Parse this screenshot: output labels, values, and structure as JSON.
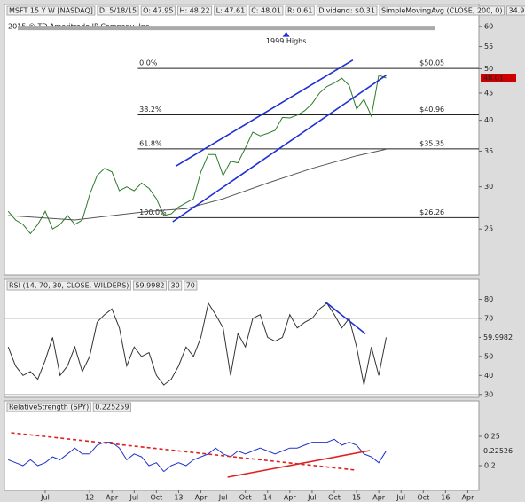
{
  "chart_data": [
    {
      "type": "line",
      "log_scale": true,
      "header": [
        "MSFT 15 Y W [NASDAQ]",
        "D: 5/18/15",
        "O: 47.95",
        "H: 48.22",
        "L: 47.61",
        "C: 48.01",
        "R: 0.61",
        "Dividend: $0.31",
        "SimpleMovingAvg (CLOSE, 200, 0)",
        "34.91"
      ],
      "watermark": "2015 © TD Ameritrade IP Company, Inc.",
      "annotation": {
        "text": "1999 Highs",
        "value": 59.6
      },
      "last_label": "48.01",
      "xlim": [
        0.5,
        64.5
      ],
      "ylim": [
        20.5,
        66
      ],
      "yticks": [
        25,
        30,
        35,
        40,
        45,
        50,
        55,
        60
      ],
      "levels": [
        {
          "value": 50.05,
          "label": "$50.05",
          "pct": "0.0%"
        },
        {
          "value": 40.96,
          "label": "$40.96",
          "pct": "38.2%"
        },
        {
          "value": 35.35,
          "label": "$35.35",
          "pct": "61.8%"
        },
        {
          "value": 26.26,
          "label": "$26.26",
          "pct": "100.0%"
        }
      ],
      "series": [
        {
          "color": "#2a7a2a",
          "x": [
            1,
            2,
            3,
            4,
            5,
            6,
            7,
            8,
            9,
            10,
            11,
            12,
            13,
            14,
            15,
            16,
            17,
            18,
            19,
            20,
            21,
            22,
            23,
            24,
            25,
            26,
            27,
            28,
            29,
            30,
            31,
            32,
            33,
            34,
            35,
            36,
            37,
            38,
            39,
            40,
            41,
            42,
            43,
            44,
            45,
            46,
            47,
            48,
            49,
            50,
            51,
            52
          ],
          "values": [
            27,
            26,
            25.5,
            24.5,
            25.5,
            27,
            25,
            25.5,
            26.5,
            25.5,
            26,
            29,
            31.5,
            32.5,
            32,
            29.5,
            30,
            29.5,
            30.5,
            29.8,
            28.5,
            26.5,
            26.7,
            27.5,
            28,
            28.5,
            32,
            34.5,
            34.5,
            31.5,
            33.5,
            33.3,
            35.5,
            38,
            37.4,
            37.8,
            38.3,
            40.5,
            40.4,
            40.9,
            41.7,
            43,
            45,
            46.3,
            47,
            48,
            46.5,
            42,
            43.8,
            40.7,
            48.6,
            48.01
          ]
        },
        {
          "color": "#555555",
          "x": [
            1,
            10,
            20,
            25,
            30,
            36,
            42,
            48,
            52
          ],
          "values": [
            26.5,
            26,
            27,
            27.3,
            28.5,
            30.5,
            32.5,
            34.3,
            35.3
          ]
        }
      ],
      "trendlines": [
        {
          "color": "#1f2fd6",
          "x": [
            23.6,
            47.5
          ],
          "values": [
            32.8,
            51.9
          ]
        },
        {
          "color": "#1f2fd6",
          "x": [
            23.2,
            52
          ],
          "values": [
            25.8,
            48.6
          ]
        }
      ]
    },
    {
      "type": "line",
      "header": [
        "RSI (14, 70, 30, CLOSE, WILDERS)",
        "59.9982",
        "30",
        "70"
      ],
      "last_label": "59.9982",
      "xlim": [
        0.5,
        64.5
      ],
      "ylim": [
        28.5,
        90.5
      ],
      "yticks": [
        30,
        40,
        50,
        60,
        70,
        80
      ],
      "bounds": [
        70,
        30
      ],
      "series": [
        {
          "color": "#333333",
          "x": [
            1,
            2,
            3,
            4,
            5,
            6,
            7,
            8,
            9,
            10,
            11,
            12,
            13,
            14,
            15,
            16,
            17,
            18,
            19,
            20,
            21,
            22,
            23,
            24,
            25,
            26,
            27,
            28,
            29,
            30,
            31,
            32,
            33,
            34,
            35,
            36,
            37,
            38,
            39,
            40,
            41,
            42,
            43,
            44,
            45,
            46,
            47,
            48,
            49,
            50,
            51,
            52
          ],
          "values": [
            55,
            45,
            40,
            42,
            38,
            48,
            60,
            40,
            45,
            55,
            42,
            50,
            68,
            72,
            75,
            65,
            45,
            55,
            50,
            52,
            40,
            35,
            38,
            45,
            55,
            50,
            60,
            78,
            72,
            65,
            40,
            62,
            55,
            70,
            72,
            60,
            58,
            60,
            72,
            65,
            68,
            70,
            75,
            78,
            72,
            65,
            70,
            55,
            35,
            55,
            40,
            60
          ]
        }
      ],
      "trendlines": [
        {
          "color": "#1f2fd6",
          "x": [
            43.8,
            49.2
          ],
          "values": [
            78.6,
            61.9
          ]
        }
      ]
    },
    {
      "type": "line",
      "header": [
        "RelativeStrength (SPY)",
        "0.225259"
      ],
      "last_label": "0.22526",
      "xlim": [
        0.5,
        64.5
      ],
      "ylim": [
        0.1576,
        0.3106
      ],
      "yticks": [
        0.2,
        0.25
      ],
      "xticks": [
        {
          "value": 6,
          "label": "Jul"
        },
        {
          "value": 12,
          "label": "12"
        },
        {
          "value": 15,
          "label": "Apr"
        },
        {
          "value": 18,
          "label": "Jul"
        },
        {
          "value": 21,
          "label": "Oct"
        },
        {
          "value": 24,
          "label": "13"
        },
        {
          "value": 27,
          "label": "Apr"
        },
        {
          "value": 30,
          "label": "Jul"
        },
        {
          "value": 33,
          "label": "Oct"
        },
        {
          "value": 36,
          "label": "14"
        },
        {
          "value": 39,
          "label": "Apr"
        },
        {
          "value": 42,
          "label": "Jul"
        },
        {
          "value": 45,
          "label": "Oct"
        },
        {
          "value": 48,
          "label": "15"
        },
        {
          "value": 51,
          "label": "Apr"
        },
        {
          "value": 54,
          "label": "Jul"
        },
        {
          "value": 57,
          "label": "Oct"
        },
        {
          "value": 60,
          "label": "16"
        },
        {
          "value": 63,
          "label": "Apr"
        }
      ],
      "series": [
        {
          "color": "#2233cc",
          "x": [
            1,
            2,
            3,
            4,
            5,
            6,
            7,
            8,
            9,
            10,
            11,
            12,
            13,
            14,
            15,
            16,
            17,
            18,
            19,
            20,
            21,
            22,
            23,
            24,
            25,
            26,
            27,
            28,
            29,
            30,
            31,
            32,
            33,
            34,
            35,
            36,
            37,
            38,
            39,
            40,
            41,
            42,
            43,
            44,
            45,
            46,
            47,
            48,
            49,
            50,
            51,
            52
          ],
          "values": [
            0.21,
            0.205,
            0.2,
            0.21,
            0.2,
            0.205,
            0.215,
            0.21,
            0.22,
            0.23,
            0.22,
            0.22,
            0.235,
            0.24,
            0.24,
            0.23,
            0.21,
            0.22,
            0.215,
            0.2,
            0.205,
            0.19,
            0.2,
            0.205,
            0.2,
            0.21,
            0.215,
            0.22,
            0.23,
            0.22,
            0.215,
            0.225,
            0.22,
            0.225,
            0.23,
            0.225,
            0.22,
            0.225,
            0.23,
            0.23,
            0.235,
            0.24,
            0.24,
            0.24,
            0.245,
            0.235,
            0.24,
            0.235,
            0.22,
            0.215,
            0.205,
            0.225259
          ]
        }
      ],
      "trendlines": [
        {
          "color": "#e02020",
          "dash": true,
          "x": [
            1.4,
            47.9
          ],
          "values": [
            0.256,
            0.1924
          ]
        },
        {
          "color": "#e02020",
          "x": [
            30.6,
            49.8
          ],
          "values": [
            0.1803,
            0.2258
          ]
        }
      ]
    }
  ]
}
